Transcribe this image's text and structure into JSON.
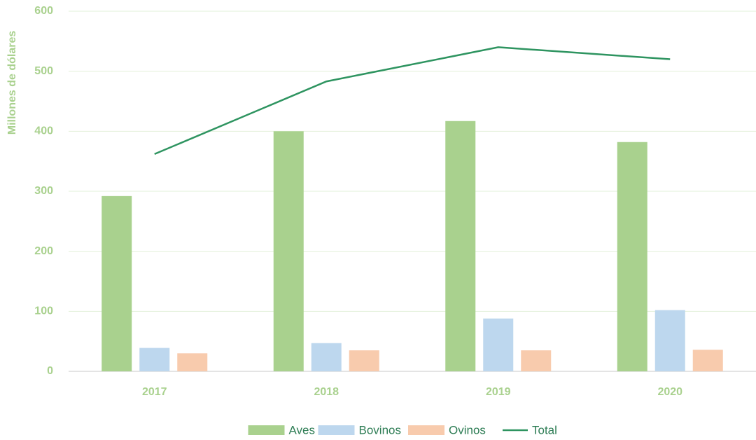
{
  "chart_data": {
    "type": "bar",
    "y_label": "Millones de dólares",
    "categories": [
      "2017",
      "2018",
      "2019",
      "2020"
    ],
    "series": [
      {
        "name": "Aves",
        "color": "#a9d18e",
        "values": [
          292,
          400,
          417,
          382
        ]
      },
      {
        "name": "Bovinos",
        "color": "#bdd7ee",
        "values": [
          39,
          47,
          88,
          102
        ]
      },
      {
        "name": "Ovinos",
        "color": "#f8cbad",
        "values": [
          30,
          35,
          35,
          36
        ]
      },
      {
        "name": "Total",
        "color": "#2e9460",
        "type": "line",
        "values": [
          362,
          483,
          540,
          520
        ]
      }
    ],
    "ylim": [
      0,
      600
    ],
    "yticks": [
      0,
      100,
      200,
      300,
      400,
      500,
      600
    ],
    "grid": true,
    "legend": "bottom"
  }
}
